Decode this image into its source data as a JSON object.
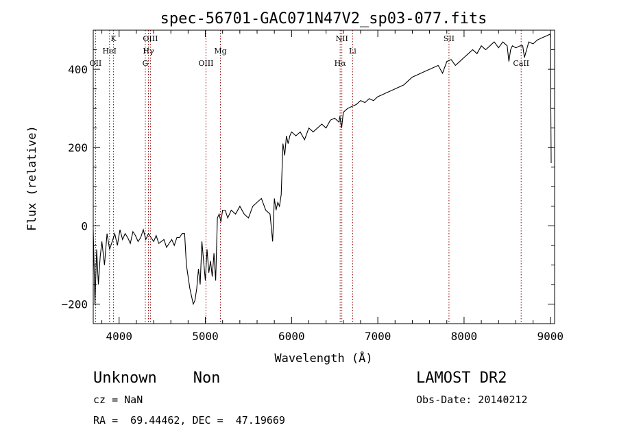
{
  "chart_data": {
    "type": "line",
    "title": "spec-56701-GAC071N47V2_sp03-077.fits",
    "xlabel": "Wavelength (Å)",
    "ylabel": "Flux (relative)",
    "xlim": [
      3700,
      9050
    ],
    "ylim": [
      -250,
      500
    ],
    "xticks": [
      4000,
      5000,
      6000,
      7000,
      8000,
      9000
    ],
    "xtick_labels": [
      "4000",
      "5000",
      "6000",
      "7000",
      "8000",
      "9000"
    ],
    "yticks": [
      -200,
      0,
      200,
      400
    ],
    "ytick_labels": [
      "−200",
      "0",
      "200",
      "400"
    ],
    "grid": false,
    "line_color": "#000000",
    "marker_color": "#8b0000",
    "lines": [
      {
        "label": "OII",
        "wavelength": 3727,
        "level": 3
      },
      {
        "label": "K",
        "wavelength": 3934,
        "level": 1
      },
      {
        "label": "HeI",
        "wavelength": 3889,
        "level": 2
      },
      {
        "label": "OIII",
        "wavelength": 4363,
        "level": 1
      },
      {
        "label": "Hγ",
        "wavelength": 4340,
        "level": 2
      },
      {
        "label": "G",
        "wavelength": 4304,
        "level": 3
      },
      {
        "label": "OIII",
        "wavelength": 5007,
        "level": 3
      },
      {
        "label": "Mg",
        "wavelength": 5175,
        "level": 2
      },
      {
        "label": "NII",
        "wavelength": 6583,
        "level": 1
      },
      {
        "label": "Hα",
        "wavelength": 6563,
        "level": 3
      },
      {
        "label": "Li",
        "wavelength": 6708,
        "level": 2
      },
      {
        "label": "SII",
        "wavelength": 7825,
        "level": 1
      },
      {
        "label": "CaII",
        "wavelength": 8662,
        "level": 3
      }
    ],
    "series": [
      {
        "x": [
          3700,
          3720,
          3740,
          3760,
          3780,
          3800,
          3830,
          3860,
          3890,
          3920,
          3950,
          3980,
          4010,
          4040,
          4070,
          4100,
          4130,
          4160,
          4190,
          4220,
          4250,
          4280,
          4310,
          4340,
          4370,
          4400,
          4430,
          4460,
          4490,
          4520,
          4550,
          4580,
          4610,
          4640,
          4670,
          4700,
          4730,
          4760,
          4780,
          4800,
          4820,
          4840,
          4860,
          4880,
          4900,
          4920,
          4940,
          4960,
          4980,
          5000,
          5020,
          5040,
          5060,
          5080,
          5100,
          5120,
          5140,
          5160,
          5180,
          5200,
          5230,
          5260,
          5300,
          5350,
          5400,
          5450,
          5500,
          5550,
          5600,
          5650,
          5700,
          5750,
          5780,
          5800,
          5820,
          5840,
          5860,
          5880,
          5900,
          5920,
          5940,
          5960,
          5980,
          6000,
          6050,
          6100,
          6150,
          6200,
          6250,
          6300,
          6350,
          6400,
          6450,
          6500,
          6550,
          6560,
          6580,
          6600,
          6650,
          6700,
          6750,
          6800,
          6850,
          6900,
          6950,
          7000,
          7050,
          7100,
          7150,
          7200,
          7250,
          7300,
          7350,
          7400,
          7450,
          7500,
          7550,
          7600,
          7650,
          7700,
          7750,
          7800,
          7850,
          7900,
          7950,
          8000,
          8050,
          8100,
          8150,
          8200,
          8250,
          8300,
          8350,
          8400,
          8450,
          8500,
          8520,
          8540,
          8560,
          8600,
          8650,
          8680,
          8700,
          8750,
          8800,
          8850,
          8900,
          8950,
          9000,
          9010
        ],
        "y": [
          -10,
          -200,
          -60,
          -150,
          -80,
          -40,
          -100,
          -20,
          -60,
          -40,
          -20,
          -50,
          -10,
          -35,
          -20,
          -30,
          -45,
          -15,
          -25,
          -40,
          -30,
          -10,
          -35,
          -20,
          -30,
          -40,
          -25,
          -45,
          -40,
          -35,
          -55,
          -45,
          -35,
          -50,
          -30,
          -30,
          -20,
          -20,
          -100,
          -130,
          -160,
          -180,
          -200,
          -190,
          -160,
          -110,
          -150,
          -40,
          -90,
          -140,
          -60,
          -120,
          -90,
          -130,
          -70,
          -140,
          20,
          30,
          10,
          40,
          40,
          20,
          40,
          30,
          50,
          30,
          20,
          50,
          60,
          70,
          40,
          30,
          -40,
          70,
          40,
          60,
          50,
          80,
          210,
          180,
          230,
          210,
          230,
          240,
          230,
          240,
          220,
          250,
          240,
          250,
          260,
          250,
          270,
          275,
          265,
          280,
          250,
          290,
          300,
          305,
          310,
          320,
          315,
          325,
          320,
          330,
          335,
          340,
          345,
          350,
          355,
          360,
          370,
          380,
          385,
          390,
          395,
          400,
          405,
          410,
          390,
          420,
          425,
          410,
          420,
          430,
          440,
          450,
          440,
          460,
          450,
          460,
          470,
          455,
          470,
          460,
          420,
          450,
          460,
          455,
          460,
          460,
          430,
          470,
          465,
          475,
          480,
          485,
          490,
          160
        ]
      }
    ]
  },
  "info": {
    "class_text": "Unknown    Non",
    "cz_text": "cz = NaN",
    "coords_text": "RA =  69.44462, DEC =  47.19669",
    "survey_text": "LAMOST DR2",
    "obsdate_text": "Obs-Date: 20140212"
  }
}
